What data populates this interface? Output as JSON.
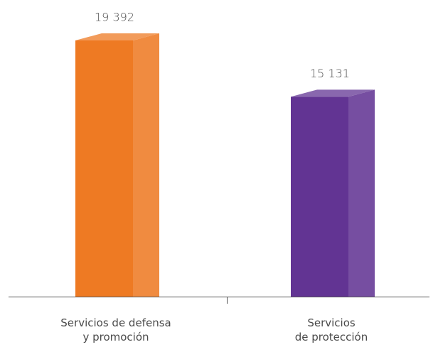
{
  "chart_data": {
    "type": "bar3d",
    "categories": [
      "Servicios de defensa\ny promoción",
      "Servicios\nde protección"
    ],
    "values": [
      19392,
      15131
    ],
    "value_labels": [
      "19 392",
      "15 131"
    ],
    "colors": [
      "#ee7a23",
      "#623493"
    ]
  }
}
